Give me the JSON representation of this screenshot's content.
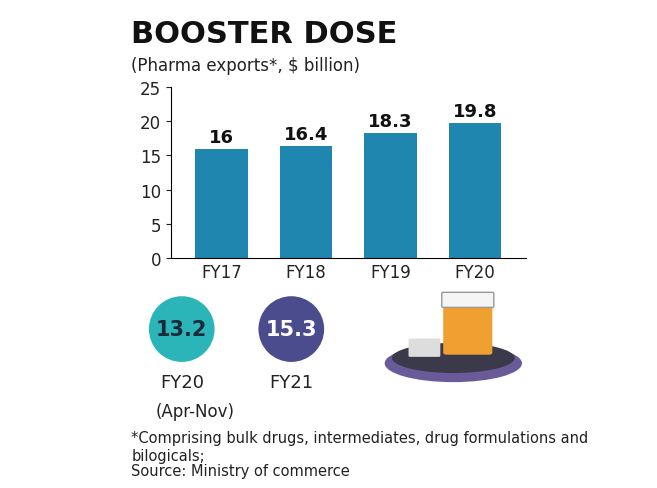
{
  "chart_data": {
    "type": "bar",
    "title": "BOOSTER DOSE",
    "subtitle": "(Pharma exports*, $ billion)",
    "categories": [
      "FY17",
      "FY18",
      "FY19",
      "FY20"
    ],
    "values": [
      16,
      16.4,
      18.3,
      19.8
    ],
    "color": "#1f86b0",
    "ylim": [
      0,
      25
    ],
    "yticks": [
      0,
      5,
      10,
      15,
      20,
      25
    ],
    "grid": false,
    "data_labels": true,
    "comparison": {
      "categories": [
        "FY20",
        "FY21"
      ],
      "values": [
        13.2,
        15.3
      ],
      "colors": [
        "#2bb5b8",
        "#4b4c8e"
      ],
      "period": "(Apr-Nov)"
    },
    "note": "*Comprising bulk drugs, intermediates, drug formulations and bilogicals;",
    "source": "Source: Ministry of commerce"
  }
}
